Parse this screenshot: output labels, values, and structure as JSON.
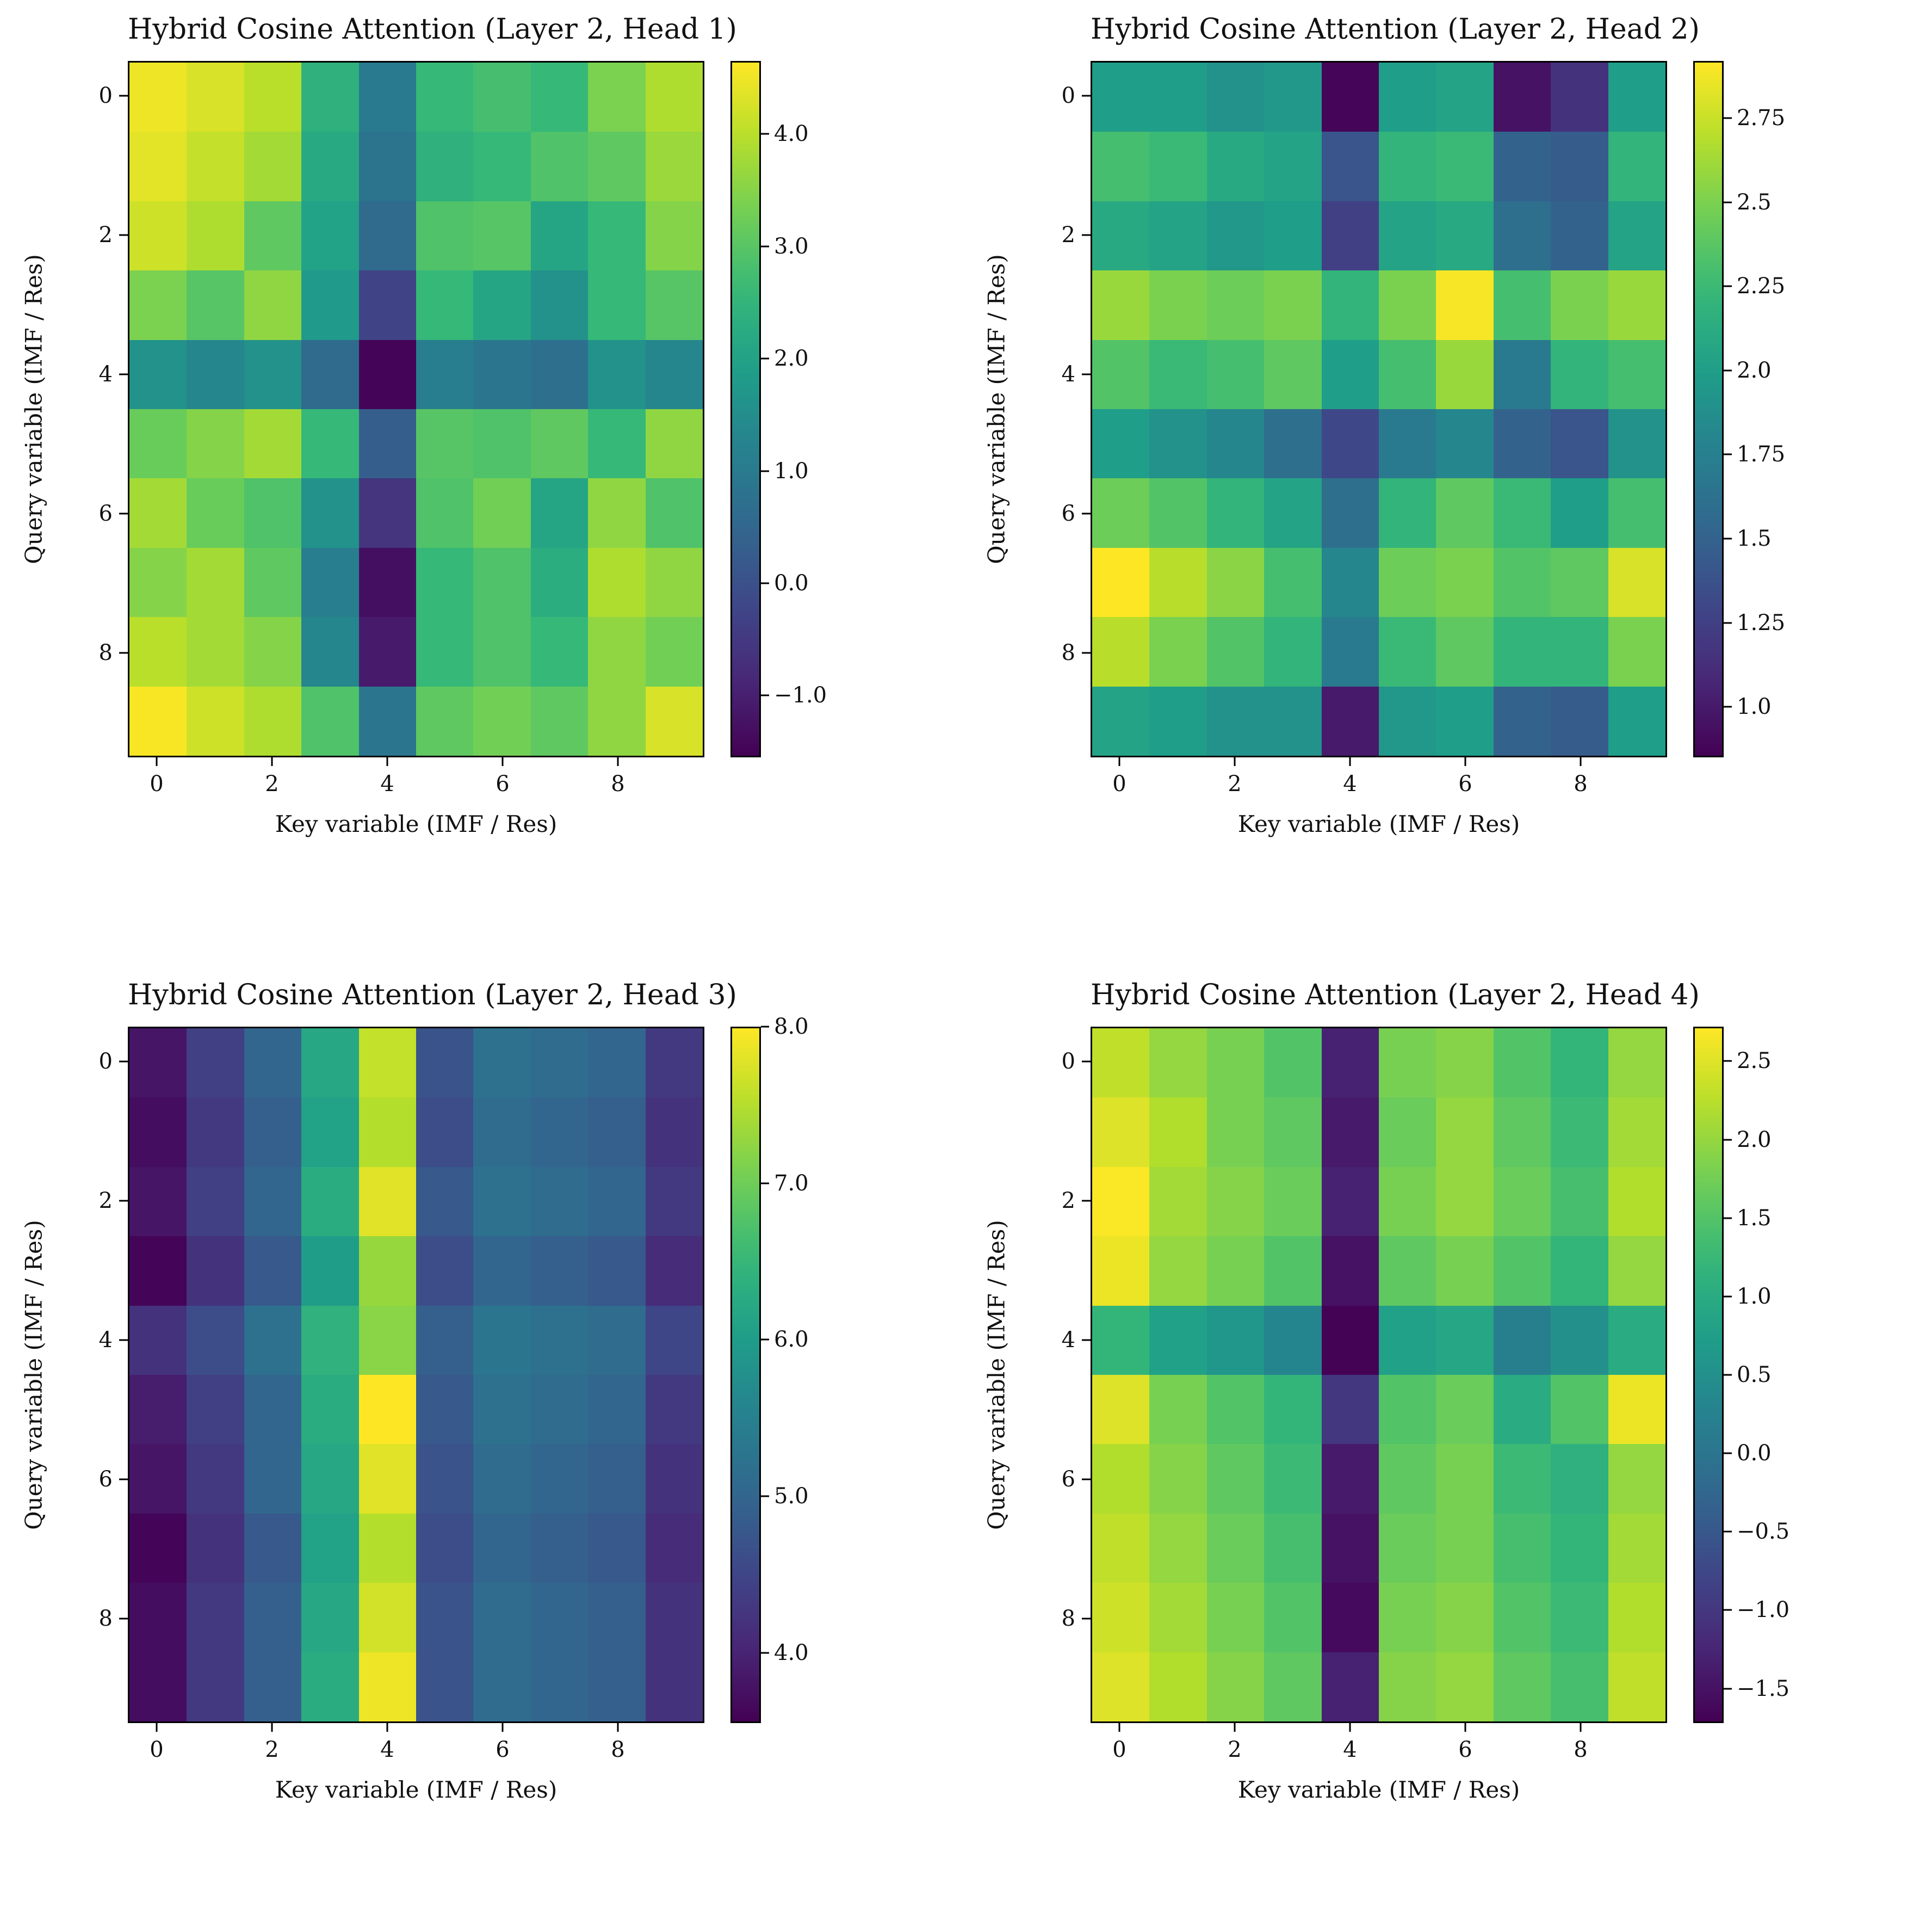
{
  "figure": {
    "background": "#ffffff",
    "colormap": "viridis"
  },
  "chart_data": [
    {
      "type": "heatmap",
      "title": "Hybrid Cosine Attention (Layer 2, Head 1)",
      "xlabel": "Key variable (IMF / Res)",
      "ylabel": "Query variable (IMF / Res)",
      "colormap": "viridis",
      "x_ticks": [
        0,
        2,
        4,
        6,
        8
      ],
      "y_ticks": [
        0,
        2,
        4,
        6,
        8
      ],
      "vmin": -1.55,
      "vmax": 4.65,
      "colorbar_ticks": [
        {
          "value": 4.0,
          "label": "4.0"
        },
        {
          "value": 3.0,
          "label": "3.0"
        },
        {
          "value": 2.0,
          "label": "2.0"
        },
        {
          "value": 1.0,
          "label": "1.0"
        },
        {
          "value": 0.0,
          "label": "0.0"
        },
        {
          "value": -1.0,
          "label": "−1.0"
        }
      ],
      "values": [
        [
          4.5,
          4.3,
          4.0,
          2.4,
          1.0,
          2.6,
          2.8,
          2.6,
          3.4,
          3.9
        ],
        [
          4.4,
          4.1,
          3.8,
          2.2,
          0.8,
          2.4,
          2.6,
          2.9,
          3.1,
          3.7
        ],
        [
          4.2,
          3.9,
          3.1,
          2.0,
          0.6,
          2.9,
          3.0,
          2.1,
          2.6,
          3.5
        ],
        [
          3.4,
          3.0,
          3.6,
          1.8,
          -0.3,
          2.6,
          2.1,
          1.6,
          2.6,
          3.0
        ],
        [
          1.6,
          1.3,
          1.6,
          0.6,
          -1.5,
          1.1,
          0.9,
          0.7,
          1.6,
          1.3
        ],
        [
          3.2,
          3.5,
          3.8,
          2.6,
          0.3,
          3.0,
          2.9,
          3.1,
          2.6,
          3.6
        ],
        [
          3.8,
          3.2,
          2.9,
          1.6,
          -0.6,
          2.9,
          3.3,
          2.1,
          3.6,
          2.9
        ],
        [
          3.5,
          3.8,
          3.1,
          1.1,
          -1.3,
          2.6,
          2.9,
          2.3,
          3.9,
          3.6
        ],
        [
          4.0,
          3.8,
          3.5,
          1.3,
          -1.1,
          2.6,
          2.9,
          2.6,
          3.6,
          3.3
        ],
        [
          4.6,
          4.2,
          3.9,
          2.9,
          0.9,
          3.1,
          3.3,
          3.1,
          3.6,
          4.3
        ]
      ]
    },
    {
      "type": "heatmap",
      "title": "Hybrid Cosine Attention (Layer 2, Head 2)",
      "xlabel": "Key variable (IMF / Res)",
      "ylabel": "Query variable (IMF / Res)",
      "colormap": "viridis",
      "x_ticks": [
        0,
        2,
        4,
        6,
        8
      ],
      "y_ticks": [
        0,
        2,
        4,
        6,
        8
      ],
      "vmin": 0.85,
      "vmax": 2.92,
      "colorbar_ticks": [
        {
          "value": 2.75,
          "label": "2.75"
        },
        {
          "value": 2.5,
          "label": "2.5"
        },
        {
          "value": 2.25,
          "label": "2.25"
        },
        {
          "value": 2.0,
          "label": "2.0"
        },
        {
          "value": 1.75,
          "label": "1.75"
        },
        {
          "value": 1.5,
          "label": "1.5"
        },
        {
          "value": 1.25,
          "label": "1.25"
        },
        {
          "value": 1.0,
          "label": "1.0"
        }
      ],
      "values": [
        [
          2.0,
          2.0,
          1.9,
          1.95,
          0.88,
          2.0,
          2.05,
          0.95,
          1.15,
          2.0
        ],
        [
          2.3,
          2.25,
          2.1,
          2.05,
          1.4,
          2.2,
          2.25,
          1.5,
          1.45,
          2.2
        ],
        [
          2.1,
          2.05,
          1.95,
          2.0,
          1.25,
          2.05,
          2.1,
          1.6,
          1.5,
          2.05
        ],
        [
          2.6,
          2.5,
          2.45,
          2.5,
          2.2,
          2.5,
          2.9,
          2.3,
          2.5,
          2.6
        ],
        [
          2.35,
          2.25,
          2.3,
          2.4,
          2.0,
          2.3,
          2.6,
          1.7,
          2.2,
          2.3
        ],
        [
          2.0,
          1.9,
          1.8,
          1.6,
          1.3,
          1.7,
          1.8,
          1.5,
          1.4,
          1.9
        ],
        [
          2.45,
          2.35,
          2.2,
          2.05,
          1.6,
          2.2,
          2.4,
          2.25,
          2.0,
          2.3
        ],
        [
          2.92,
          2.7,
          2.55,
          2.3,
          1.8,
          2.45,
          2.5,
          2.35,
          2.4,
          2.8
        ],
        [
          2.7,
          2.5,
          2.35,
          2.2,
          1.7,
          2.25,
          2.4,
          2.2,
          2.2,
          2.5
        ],
        [
          2.05,
          2.0,
          1.9,
          1.9,
          1.0,
          1.95,
          2.0,
          1.5,
          1.45,
          2.0
        ]
      ]
    },
    {
      "type": "heatmap",
      "title": "Hybrid Cosine Attention (Layer 2, Head 3)",
      "xlabel": "Key variable (IMF / Res)",
      "ylabel": "Query variable (IMF / Res)",
      "colormap": "viridis",
      "x_ticks": [
        0,
        2,
        4,
        6,
        8
      ],
      "y_ticks": [
        0,
        2,
        4,
        6,
        8
      ],
      "vmin": 3.55,
      "vmax": 8.0,
      "colorbar_ticks": [
        {
          "value": 8.0,
          "label": "8.0"
        },
        {
          "value": 7.0,
          "label": "7.0"
        },
        {
          "value": 6.0,
          "label": "6.0"
        },
        {
          "value": 5.0,
          "label": "5.0"
        },
        {
          "value": 4.0,
          "label": "4.0"
        }
      ],
      "values": [
        [
          3.8,
          4.4,
          5.0,
          6.2,
          7.6,
          4.7,
          5.2,
          5.1,
          5.0,
          4.3
        ],
        [
          3.7,
          4.3,
          4.9,
          6.1,
          7.5,
          4.6,
          5.1,
          5.0,
          4.9,
          4.2
        ],
        [
          3.8,
          4.4,
          5.0,
          6.3,
          7.8,
          4.8,
          5.2,
          5.1,
          5.0,
          4.3
        ],
        [
          3.6,
          4.2,
          4.8,
          6.0,
          7.3,
          4.6,
          5.0,
          4.9,
          4.8,
          4.1
        ],
        [
          4.2,
          4.6,
          5.2,
          6.4,
          7.2,
          4.9,
          5.3,
          5.2,
          5.1,
          4.5
        ],
        [
          3.9,
          4.4,
          5.0,
          6.3,
          8.0,
          4.8,
          5.2,
          5.1,
          5.0,
          4.3
        ],
        [
          3.8,
          4.3,
          5.0,
          6.2,
          7.8,
          4.7,
          5.1,
          5.0,
          4.9,
          4.2
        ],
        [
          3.6,
          4.2,
          4.8,
          6.1,
          7.5,
          4.6,
          5.0,
          4.9,
          4.8,
          4.1
        ],
        [
          3.7,
          4.3,
          4.9,
          6.2,
          7.7,
          4.7,
          5.1,
          5.0,
          4.9,
          4.2
        ],
        [
          3.7,
          4.3,
          4.9,
          6.3,
          7.9,
          4.7,
          5.1,
          5.0,
          4.9,
          4.2
        ]
      ]
    },
    {
      "type": "heatmap",
      "title": "Hybrid Cosine Attention (Layer 2, Head 4)",
      "xlabel": "Key variable (IMF / Res)",
      "ylabel": "Query variable (IMF / Res)",
      "colormap": "viridis",
      "x_ticks": [
        0,
        2,
        4,
        6,
        8
      ],
      "y_ticks": [
        0,
        2,
        4,
        6,
        8
      ],
      "vmin": -1.72,
      "vmax": 2.72,
      "colorbar_ticks": [
        {
          "value": 2.5,
          "label": "2.5"
        },
        {
          "value": 2.0,
          "label": "2.0"
        },
        {
          "value": 1.5,
          "label": "1.5"
        },
        {
          "value": 1.0,
          "label": "1.0"
        },
        {
          "value": 0.5,
          "label": "0.5"
        },
        {
          "value": 0.0,
          "label": "0.0"
        },
        {
          "value": -0.5,
          "label": "−0.5"
        },
        {
          "value": -1.0,
          "label": "−1.0"
        },
        {
          "value": -1.5,
          "label": "−1.5"
        }
      ],
      "values": [
        [
          2.3,
          2.0,
          1.8,
          1.5,
          -1.3,
          1.8,
          1.9,
          1.5,
          1.2,
          2.0
        ],
        [
          2.5,
          2.2,
          1.8,
          1.6,
          -1.4,
          1.7,
          2.0,
          1.6,
          1.3,
          2.1
        ],
        [
          2.7,
          2.1,
          1.9,
          1.7,
          -1.3,
          1.8,
          2.0,
          1.7,
          1.4,
          2.2
        ],
        [
          2.6,
          2.0,
          1.8,
          1.5,
          -1.5,
          1.6,
          1.8,
          1.5,
          1.2,
          2.0
        ],
        [
          1.2,
          0.8,
          0.6,
          0.3,
          -1.7,
          0.8,
          0.9,
          0.2,
          0.5,
          1.0
        ],
        [
          2.5,
          1.8,
          1.5,
          1.2,
          -1.0,
          1.5,
          1.7,
          1.0,
          1.5,
          2.6
        ],
        [
          2.2,
          1.9,
          1.6,
          1.3,
          -1.4,
          1.6,
          1.8,
          1.3,
          1.1,
          2.0
        ],
        [
          2.3,
          2.0,
          1.7,
          1.4,
          -1.5,
          1.7,
          1.8,
          1.4,
          1.2,
          2.1
        ],
        [
          2.4,
          2.1,
          1.8,
          1.5,
          -1.6,
          1.8,
          1.9,
          1.5,
          1.3,
          2.2
        ],
        [
          2.5,
          2.2,
          1.9,
          1.6,
          -1.3,
          1.9,
          2.0,
          1.6,
          1.4,
          2.3
        ]
      ]
    }
  ]
}
